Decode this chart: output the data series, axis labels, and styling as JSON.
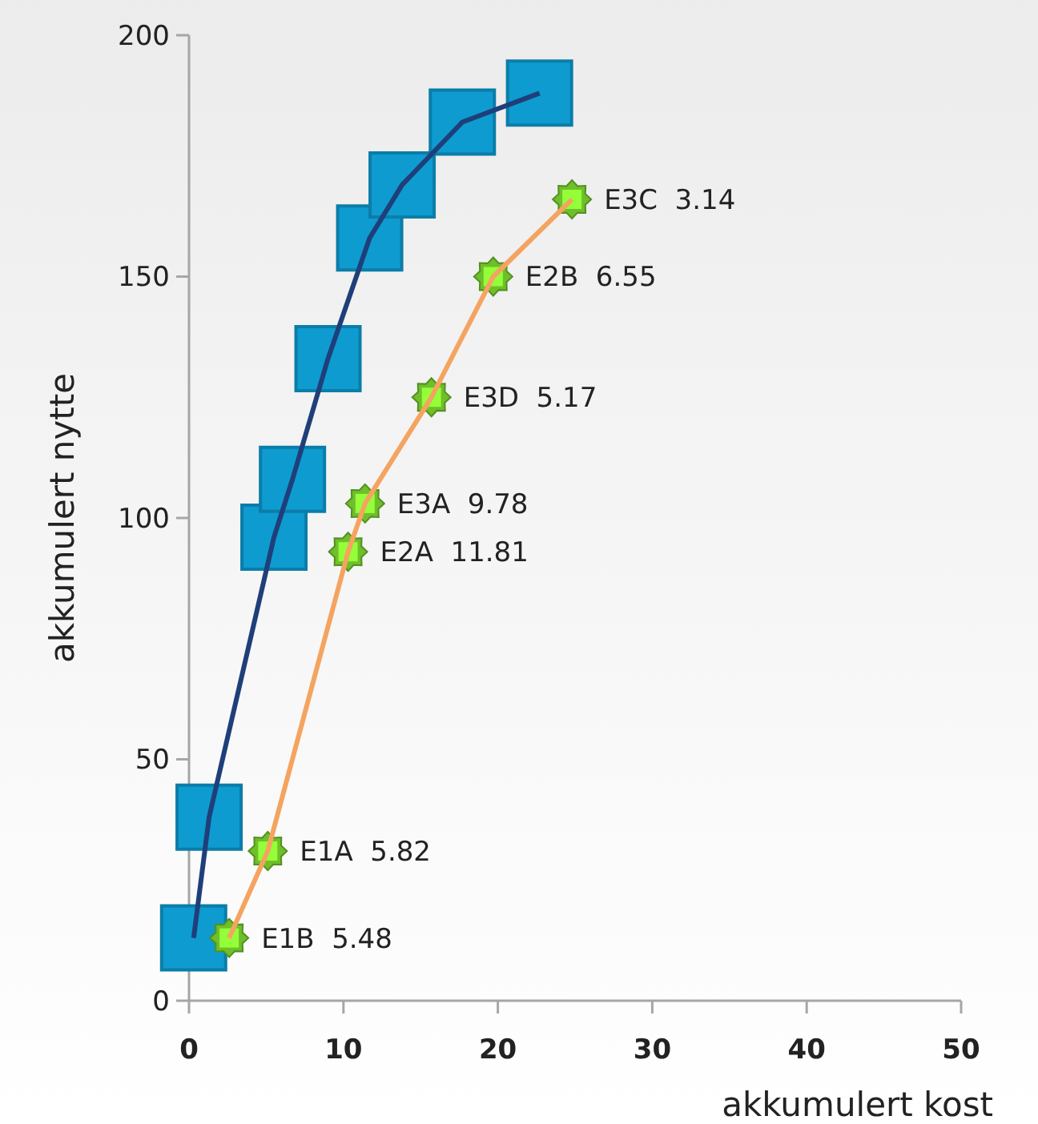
{
  "chart_data": {
    "type": "line",
    "xlabel": "akkumulert kost",
    "ylabel": "akkumulert nytte",
    "xlim": [
      0,
      50
    ],
    "xticks": [
      0,
      10,
      20,
      30,
      40,
      50
    ],
    "ylim": [
      0,
      200
    ],
    "yticks": [
      0,
      50,
      100,
      150,
      200
    ],
    "grid": false,
    "series": [
      {
        "color": "#1f3f7a",
        "colors": [
          "#0e9bd0",
          "#0e9bd0",
          "#0e9bd0",
          "#0e9bd0",
          "#0e9bd0",
          "#0e9bd0",
          "#0e9bd0",
          "#0e9bd0",
          "#0e9bd0"
        ],
        "marker": "square",
        "x": [
          0.3,
          1.3,
          5.5,
          6.7,
          9.0,
          11.7,
          13.8,
          17.7,
          22.7
        ],
        "values": [
          13,
          38,
          96,
          108,
          133,
          158,
          169,
          182,
          188
        ]
      },
      {
        "color": "#f4a460",
        "colors": [
          "#6fbf2a",
          "#6fbf2a",
          "#6fbf2a",
          "#6fbf2a",
          "#6fbf2a",
          "#6fbf2a",
          "#6fbf2a"
        ],
        "marker": "star",
        "x": [
          2.6,
          5.1,
          10.3,
          11.4,
          15.7,
          19.7,
          24.8
        ],
        "values": [
          13,
          31,
          93,
          103,
          125,
          150,
          166
        ]
      }
    ],
    "annotations": [
      {
        "text": "E1B  5.48",
        "x": 2.6,
        "y": 13
      },
      {
        "text": "E1A  5.82",
        "x": 5.1,
        "y": 31
      },
      {
        "text": "E2A  11.81",
        "x": 10.3,
        "y": 93
      },
      {
        "text": "E3A  9.78",
        "x": 11.4,
        "y": 103
      },
      {
        "text": "E3D  5.17",
        "x": 15.7,
        "y": 125
      },
      {
        "text": "E2B  6.55",
        "x": 19.7,
        "y": 150
      },
      {
        "text": "E3C  3.14",
        "x": 24.8,
        "y": 166
      }
    ]
  }
}
